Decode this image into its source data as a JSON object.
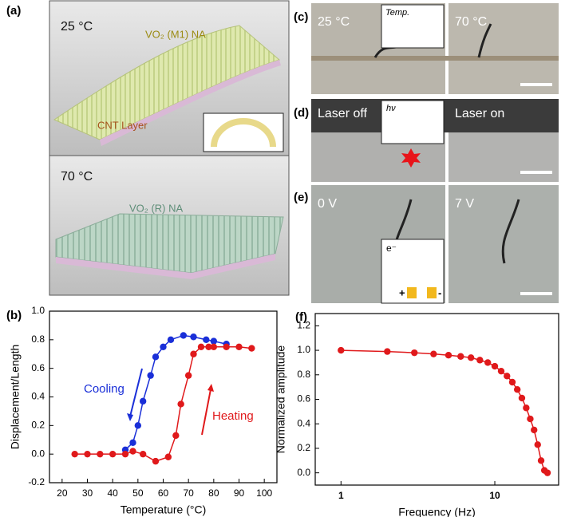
{
  "panels": {
    "a": {
      "label": "(a)",
      "top": {
        "temperature": "25 °C",
        "material": "VO₂ (M1) NA",
        "layer": "CNT Layer"
      },
      "bottom": {
        "temperature": "70 °C",
        "material": "VO₂ (R) NA"
      }
    },
    "c": {
      "label": "(c)",
      "left": "25 °C",
      "inset": "Temp.",
      "right": "70 °C"
    },
    "d": {
      "label": "(d)",
      "left": "Laser off",
      "inset": "hν",
      "right": "Laser on"
    },
    "e": {
      "label": "(e)",
      "left": "0 V",
      "right": "7 V",
      "electron": "e⁻",
      "plus": "+",
      "minus": "-"
    }
  },
  "chart_data": [
    {
      "type": "line",
      "panel": "(b)",
      "x_label": "Temperature (°C)",
      "y_label": "Displacement/Length",
      "xlim": [
        15,
        105
      ],
      "xticks": [
        20,
        30,
        40,
        50,
        60,
        70,
        80,
        90,
        100
      ],
      "ylim": [
        -0.2,
        1.0
      ],
      "yticks": [
        -0.2,
        {
          "value": 0,
          "label": "0.0"
        },
        0.2,
        0.4,
        0.6,
        0.8,
        {
          "value": 1.0,
          "label": "1.0"
        }
      ],
      "series": [
        {
          "name": "Cooling",
          "color": "#1a2fd8",
          "x": [
            45,
            48,
            50,
            52,
            55,
            57,
            60,
            63,
            68,
            72,
            77,
            80,
            85
          ],
          "values": [
            0.03,
            0.08,
            0.2,
            0.37,
            0.55,
            0.68,
            0.75,
            0.8,
            0.83,
            0.82,
            0.8,
            0.79,
            0.77
          ]
        },
        {
          "name": "Heating",
          "color": "#e0191b",
          "x": [
            25,
            30,
            35,
            40,
            45,
            48,
            52,
            57,
            62,
            65,
            67,
            70,
            72,
            75,
            78,
            80,
            85,
            90,
            95
          ],
          "values": [
            0,
            0,
            0,
            0,
            0,
            0.02,
            0,
            -0.05,
            -0.02,
            0.13,
            0.35,
            0.55,
            0.7,
            0.75,
            0.75,
            0.75,
            0.75,
            0.75,
            0.74
          ]
        }
      ]
    },
    {
      "type": "line",
      "panel": "(f)",
      "x_label": "Frequency (Hz)",
      "y_label": "Normalized amplitude",
      "log_x": true,
      "xlim": [
        0.68,
        26
      ],
      "xticks": [
        1,
        10
      ],
      "ylim": [
        -0.1,
        1.3
      ],
      "yticks": [
        {
          "value": 0,
          "label": "0.0"
        },
        0.2,
        0.4,
        0.6,
        0.8,
        {
          "value": 1.0,
          "label": "1.0"
        },
        1.2
      ],
      "series": [
        {
          "name": "Normalized amplitude",
          "color": "#e0191b",
          "x": [
            1,
            2,
            3,
            4,
            5,
            6,
            7,
            8,
            9,
            10,
            11,
            12,
            13,
            14,
            15,
            16,
            17,
            18,
            19,
            20,
            21,
            22
          ],
          "values": [
            1.0,
            0.99,
            0.98,
            0.97,
            0.96,
            0.95,
            0.94,
            0.92,
            0.9,
            0.87,
            0.83,
            0.79,
            0.74,
            0.68,
            0.61,
            0.53,
            0.44,
            0.35,
            0.23,
            0.1,
            0.02,
            0.0
          ]
        }
      ]
    }
  ]
}
